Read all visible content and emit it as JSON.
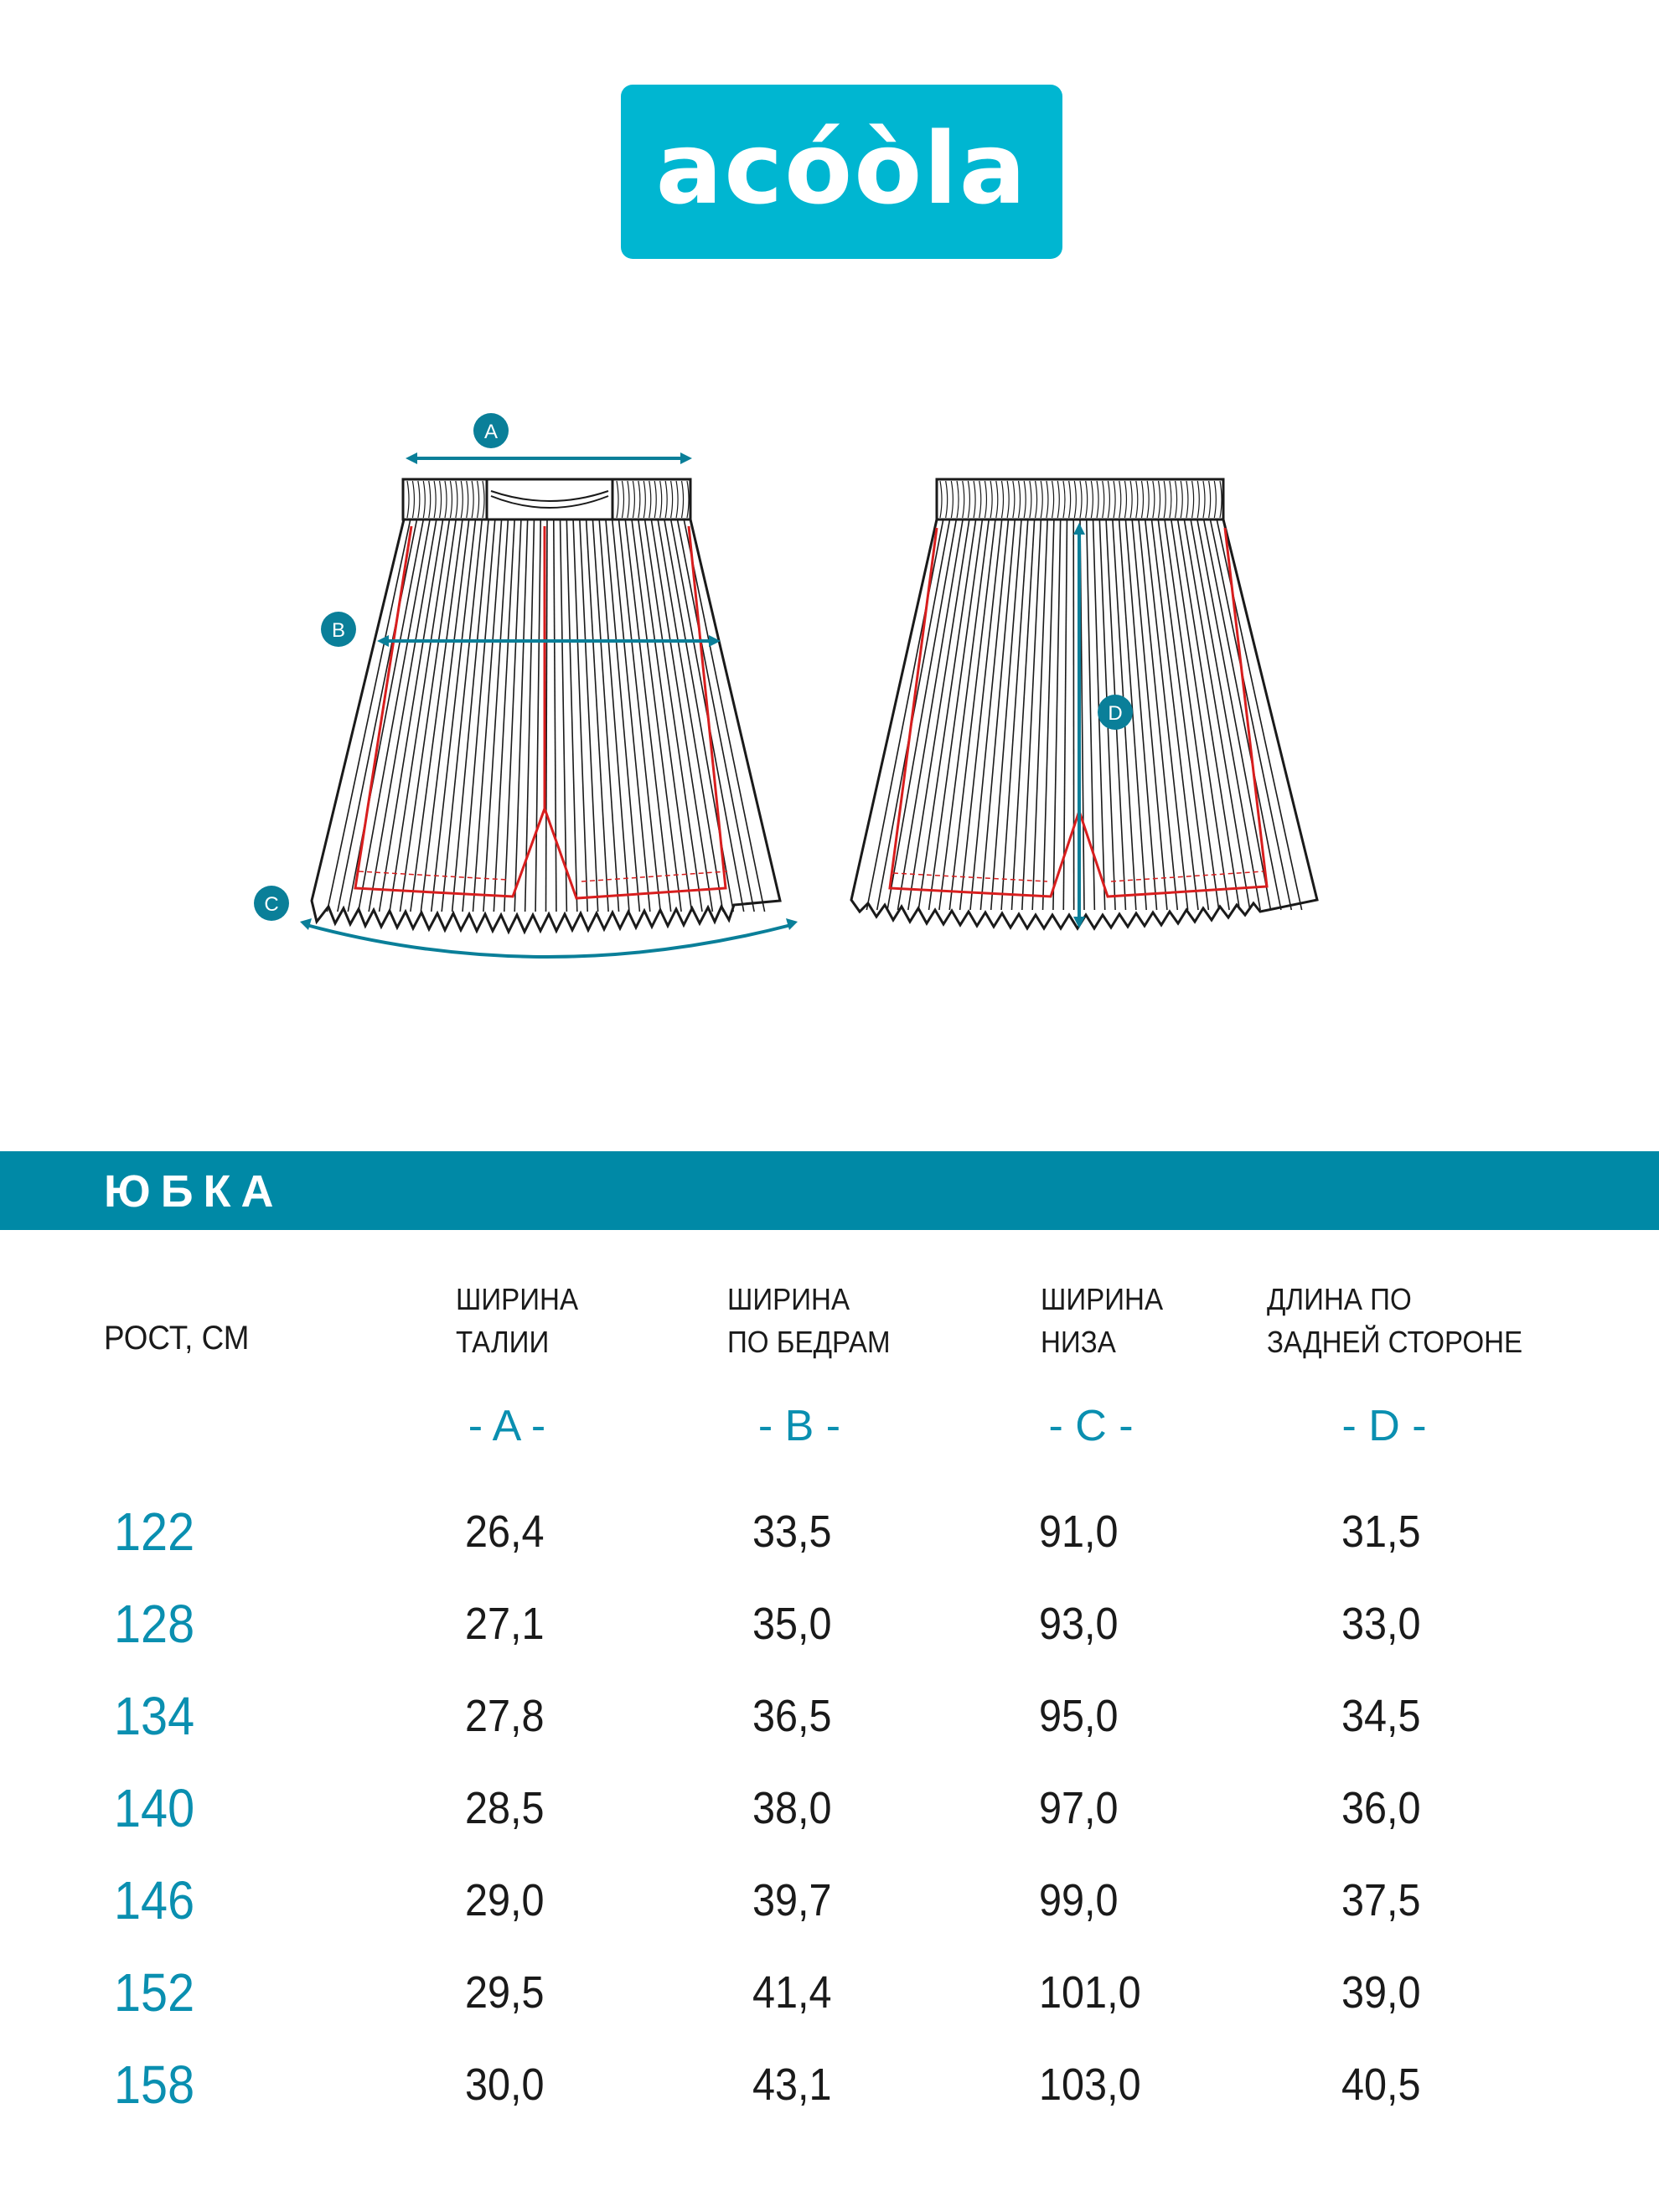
{
  "brand": {
    "logo_text": "acóòla",
    "color": "#00b6d1"
  },
  "diagram": {
    "labels": [
      "A",
      "B",
      "C",
      "D"
    ],
    "accent_color": "#0a7f99",
    "seam_color": "#d81e1e"
  },
  "section": {
    "title": "ЮБКА",
    "band_color": "#0089a6"
  },
  "table": {
    "row_header": "РОСТ, СМ",
    "columns": [
      {
        "line1": "ШИРИНА",
        "line2": "ТАЛИИ",
        "letter": "- A -"
      },
      {
        "line1": "ШИРИНА",
        "line2": "ПО БЕДРАМ",
        "letter": "- B -"
      },
      {
        "line1": "ШИРИНА",
        "line2": "НИЗА",
        "letter": "- C -"
      },
      {
        "line1": "ДЛИНА ПО",
        "line2": "ЗАДНЕЙ СТОРОНЕ",
        "letter": "- D -"
      }
    ],
    "rows": [
      {
        "height": "122",
        "values": [
          "26,4",
          "33,5",
          "91,0",
          "31,5"
        ]
      },
      {
        "height": "128",
        "values": [
          "27,1",
          "35,0",
          "93,0",
          "33,0"
        ]
      },
      {
        "height": "134",
        "values": [
          "27,8",
          "36,5",
          "95,0",
          "34,5"
        ]
      },
      {
        "height": "140",
        "values": [
          "28,5",
          "38,0",
          "97,0",
          "36,0"
        ]
      },
      {
        "height": "146",
        "values": [
          "29,0",
          "39,7",
          "99,0",
          "37,5"
        ]
      },
      {
        "height": "152",
        "values": [
          "29,5",
          "41,4",
          "101,0",
          "39,0"
        ]
      },
      {
        "height": "158",
        "values": [
          "30,0",
          "43,1",
          "103,0",
          "40,5"
        ]
      }
    ]
  }
}
